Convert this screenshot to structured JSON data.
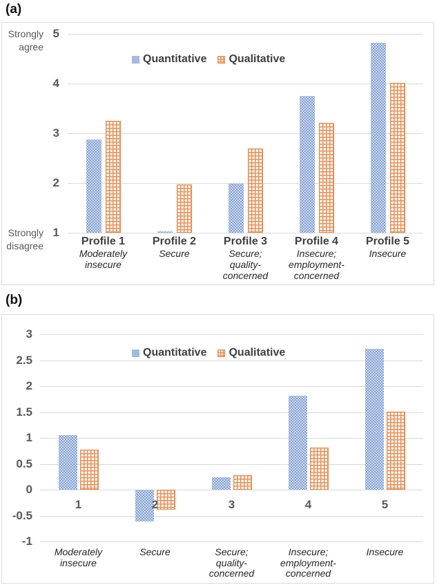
{
  "figure": {
    "background": "#ffffff"
  },
  "colors": {
    "quantitative_fill": "#cdd9ee",
    "quantitative_dot": "#7e9ed2",
    "qualitative_line": "#ec8c51",
    "gridline": "#d9d9d9",
    "axis_text": "#595959",
    "label_text": "#3f3f3f",
    "frame_border": "#d9d9d9"
  },
  "chart_data": [
    {
      "type": "bar",
      "panel": "(a)",
      "legend_position": "top-center",
      "grid": true,
      "ylim": [
        1,
        5
      ],
      "yticks": [
        1,
        2,
        3,
        4,
        5
      ],
      "bar_base": 1,
      "y_axis_annotations": [
        {
          "at": 5,
          "text": "Strongly\nagree"
        },
        {
          "at": 1,
          "text": "Strongly\ndisagree"
        }
      ],
      "categories": [
        "Profile 1",
        "Profile 2",
        "Profile 3",
        "Profile 4",
        "Profile 5"
      ],
      "category_sublabels": [
        "Moderately\ninsecure",
        "Secure",
        "Secure;\nquality-\nconcerned",
        "Insecure;\nemployment-\nconcerned",
        "Insecure"
      ],
      "series": [
        {
          "name": "Quantitative",
          "pattern": "blue-dots",
          "values": [
            2.88,
            1.03,
            1.98,
            3.75,
            4.82
          ]
        },
        {
          "name": "Qualitative",
          "pattern": "orange-grid",
          "values": [
            3.25,
            1.97,
            2.7,
            3.21,
            4.02
          ]
        }
      ]
    },
    {
      "type": "bar",
      "panel": "(b)",
      "legend_position": "top-center",
      "grid": true,
      "ylim": [
        -1,
        3
      ],
      "yticks": [
        -1,
        -0.5,
        0,
        0.5,
        1,
        1.5,
        2,
        2.5,
        3
      ],
      "bar_base": 0,
      "y_axis_annotations": [],
      "categories": [
        "1",
        "2",
        "3",
        "4",
        "5"
      ],
      "category_sublabels": [
        "Moderately\ninsecure",
        "Secure",
        "Secure;\nquality-\nconcerned",
        "Insecure;\nemployment-\nconcerned",
        "Insecure"
      ],
      "series": [
        {
          "name": "Quantitative",
          "pattern": "blue-dots",
          "values": [
            1.05,
            -0.61,
            0.24,
            1.82,
            2.72
          ]
        },
        {
          "name": "Qualitative",
          "pattern": "orange-grid",
          "values": [
            0.77,
            -0.39,
            0.28,
            0.82,
            1.51
          ]
        }
      ]
    }
  ]
}
